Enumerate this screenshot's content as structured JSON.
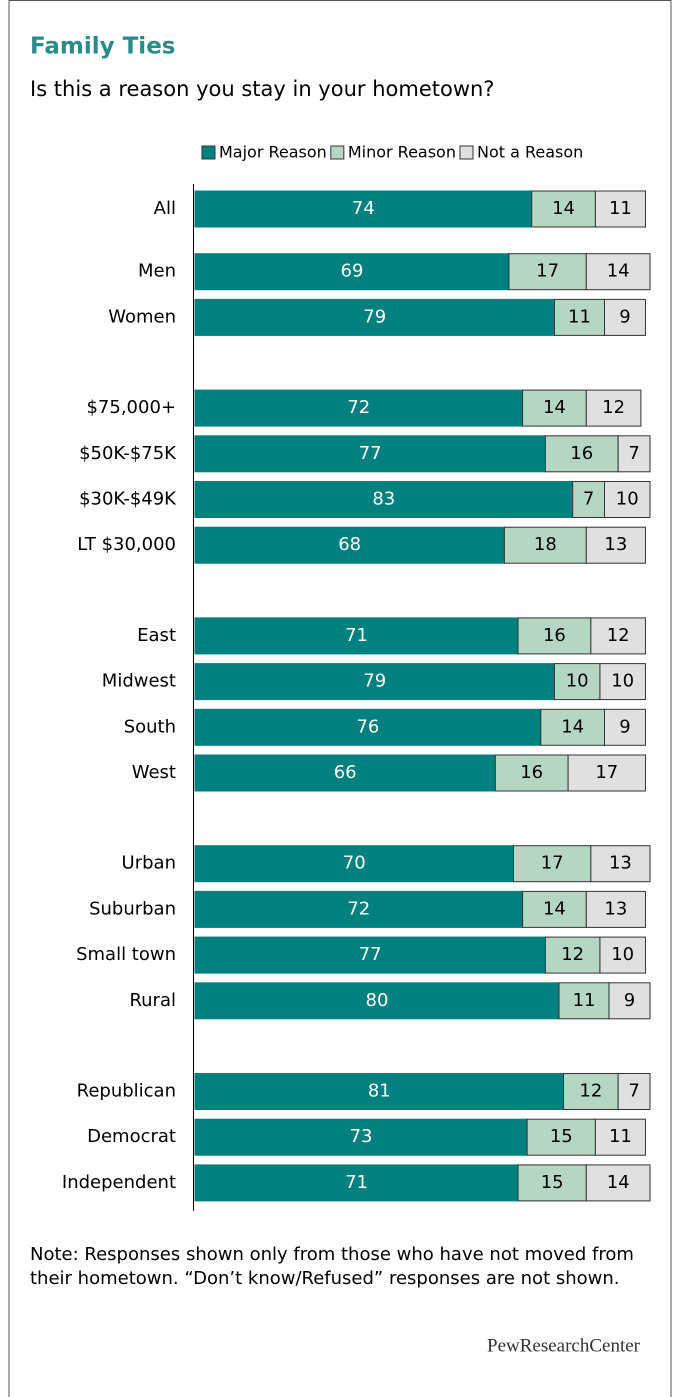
{
  "chart_data": {
    "type": "stacked-bar-horizontal",
    "title": "Family Ties",
    "subtitle": "Is this a reason you stay in your hometown?",
    "categories": [
      "All",
      "Men",
      "Women",
      "$75,000+",
      "$50K-$75K",
      "$30K-$49K",
      "LT $30,000",
      "East",
      "Midwest",
      "South",
      "West",
      "Urban",
      "Suburban",
      "Small town",
      "Rural",
      "Republican",
      "Democrat",
      "Independent"
    ],
    "series": [
      {
        "name": "Major Reason",
        "color": "#00807f",
        "values": [
          74,
          69,
          79,
          72,
          77,
          83,
          68,
          71,
          79,
          76,
          66,
          70,
          72,
          77,
          80,
          81,
          73,
          71
        ]
      },
      {
        "name": "Minor Reason",
        "color": "#b4d6c2",
        "values": [
          14,
          17,
          11,
          14,
          16,
          7,
          18,
          16,
          10,
          14,
          16,
          17,
          14,
          12,
          11,
          12,
          15,
          15
        ]
      },
      {
        "name": "Not a Reason",
        "color": "#e0e0e0",
        "values": [
          11,
          14,
          9,
          12,
          7,
          10,
          13,
          12,
          10,
          9,
          17,
          13,
          13,
          10,
          9,
          7,
          11,
          14
        ]
      }
    ],
    "xlim": [
      0,
      100
    ],
    "note": "Note: Responses shown only from those who have not moved from their hometown. “Don’t know/Refused” responses are not shown.",
    "source": "PewResearchCenter"
  }
}
